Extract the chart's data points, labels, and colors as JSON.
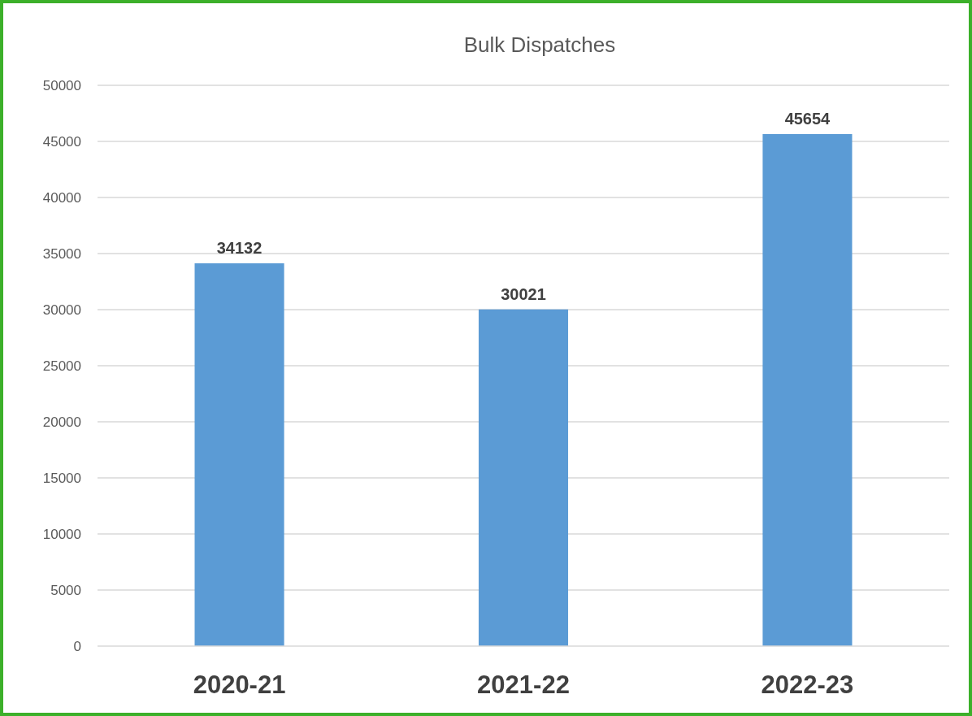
{
  "chart_data": {
    "type": "bar",
    "title": "Bulk Dispatches",
    "categories": [
      "2020-21",
      "2021-22",
      "2022-23"
    ],
    "values": [
      34132,
      30021,
      45654
    ],
    "color": "#5b9bd5",
    "ylim": [
      0,
      50000
    ],
    "yticks": [
      0,
      5000,
      10000,
      15000,
      20000,
      25000,
      30000,
      35000,
      40000,
      45000,
      50000
    ],
    "grid": "y",
    "data_labels": true
  }
}
